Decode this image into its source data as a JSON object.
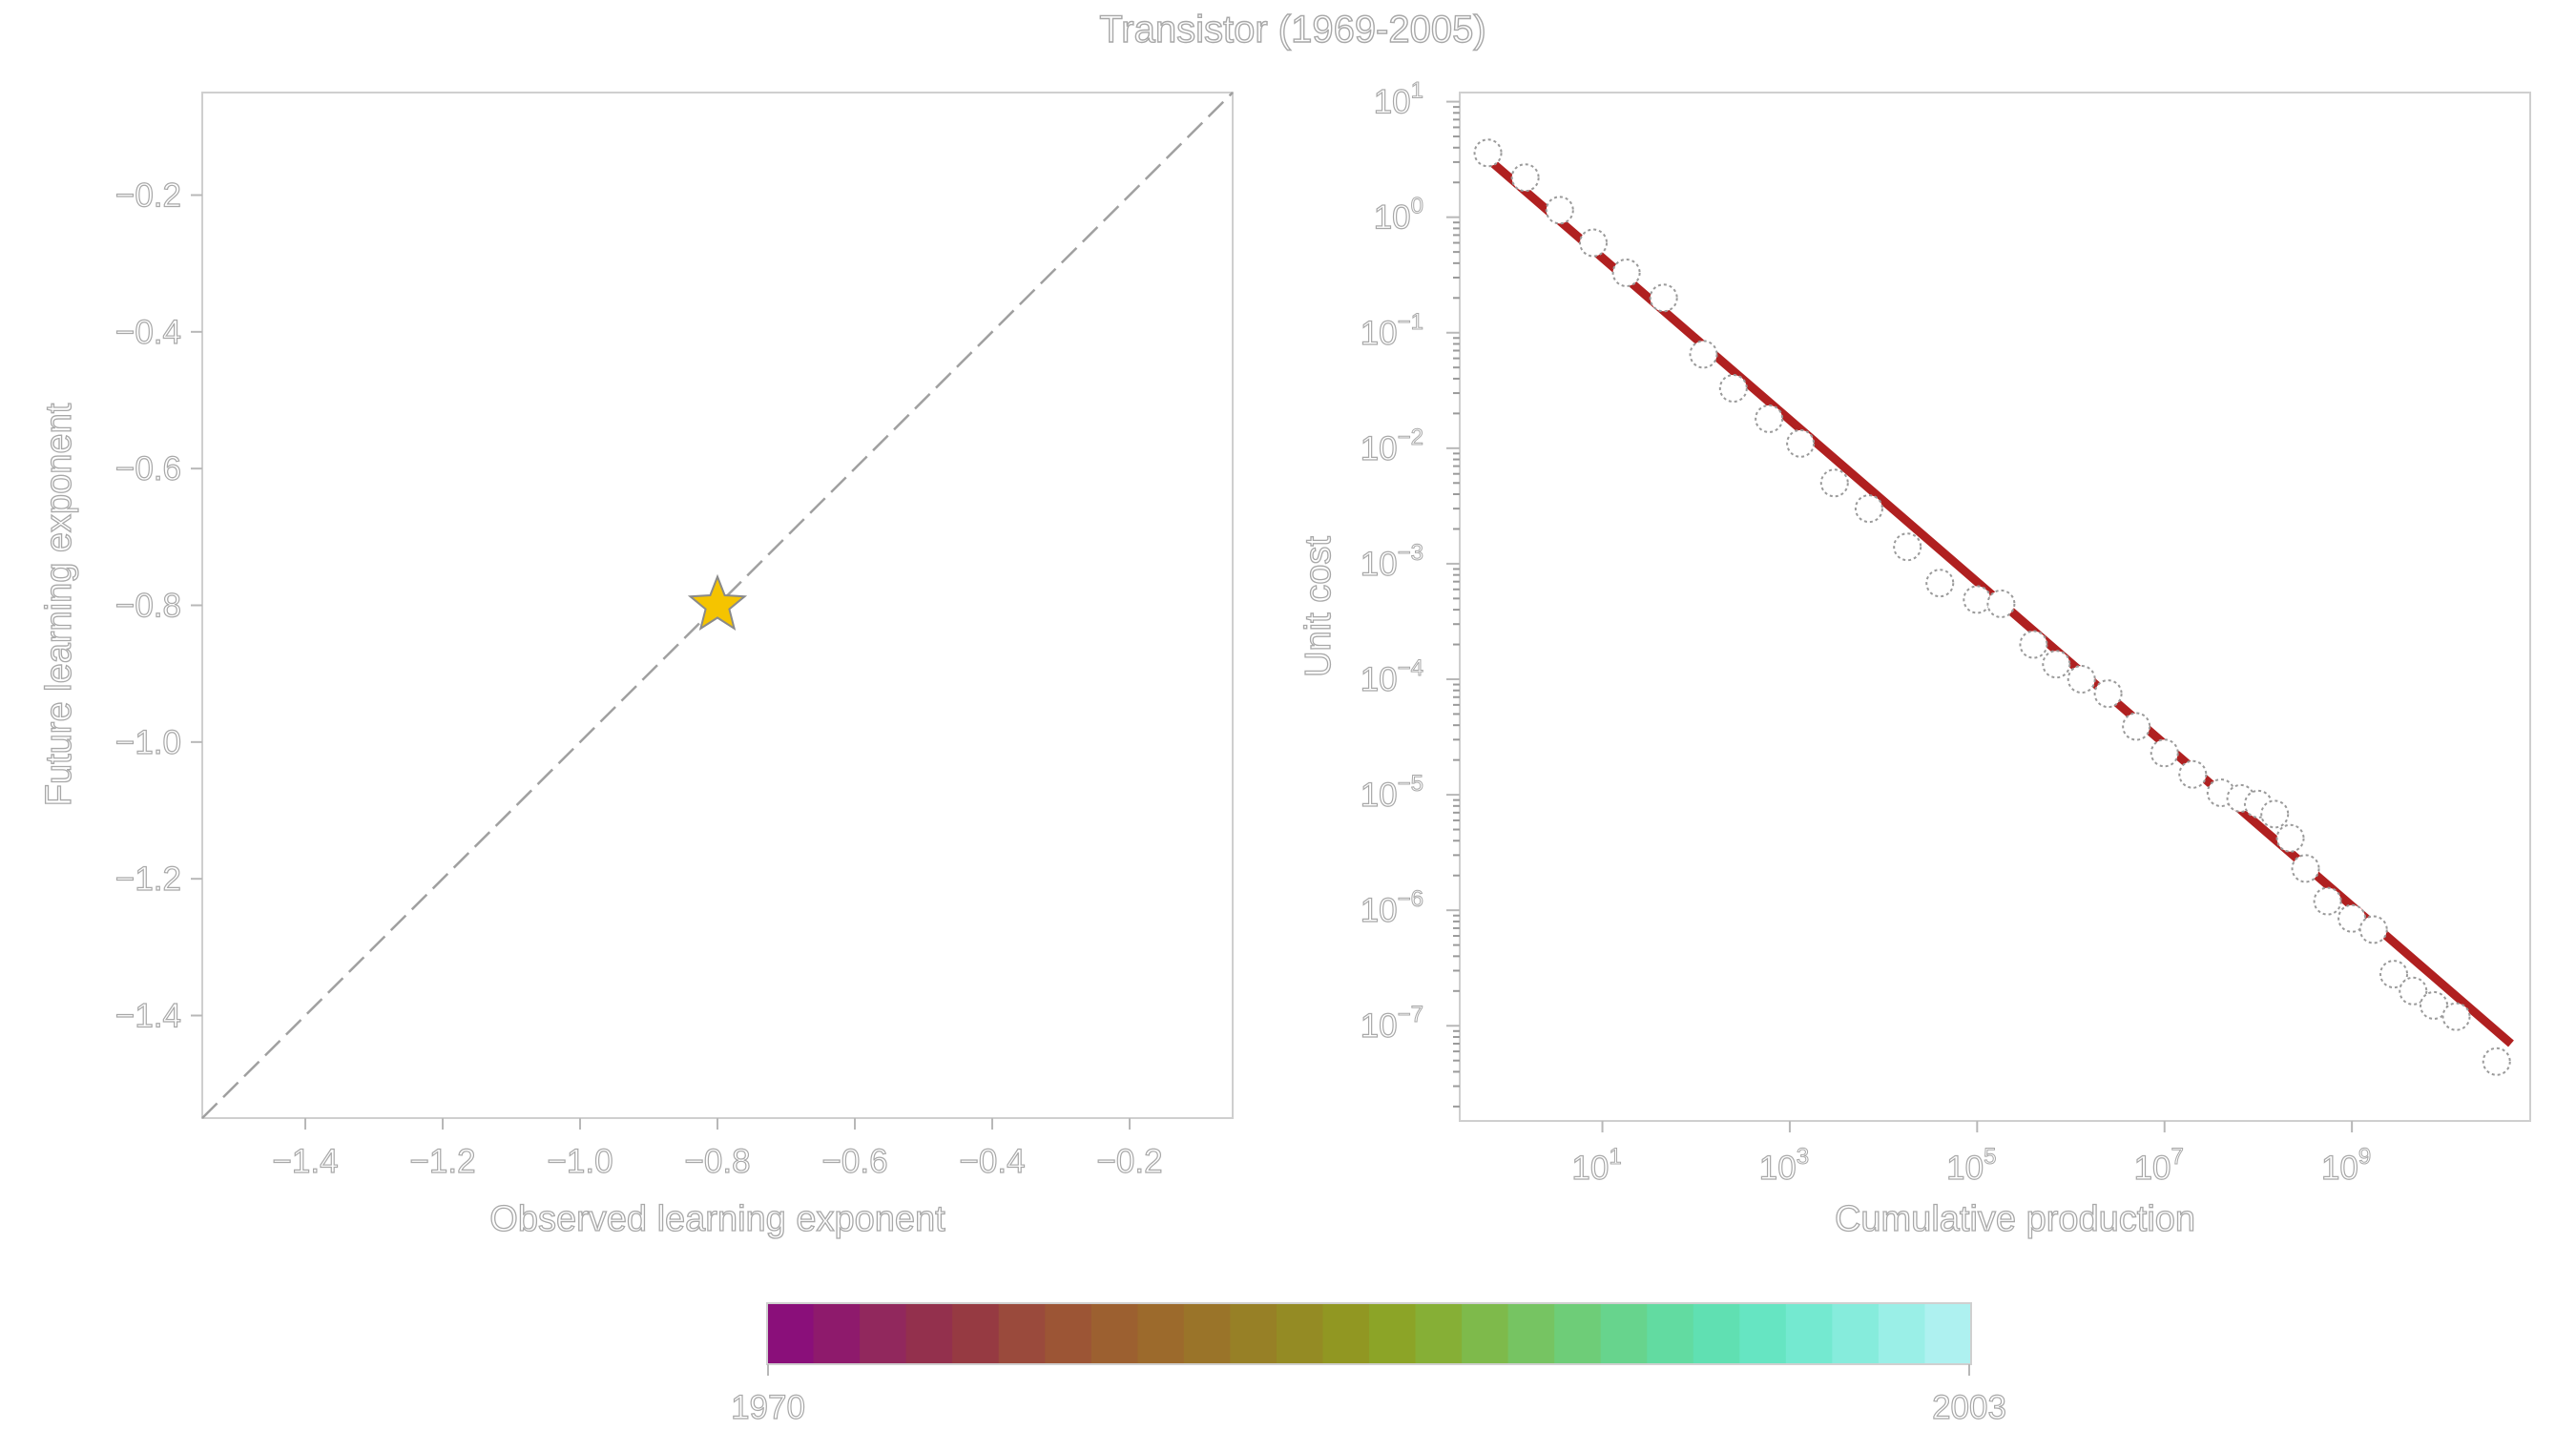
{
  "title": "Transistor (1969-2005)",
  "chart_data": [
    {
      "type": "scatter",
      "xlabel": "Observed learning exponent",
      "ylabel": "Future learning exponent",
      "xlim": [
        -1.55,
        -0.05
      ],
      "ylim": [
        -1.55,
        -0.05
      ],
      "xticks": [
        -1.4,
        -1.2,
        -1.0,
        -0.8,
        -0.6,
        -0.4,
        -0.2
      ],
      "yticks": [
        -0.2,
        -0.4,
        -0.6,
        -0.8,
        -1.0,
        -1.2,
        -1.4
      ],
      "xtick_labels": [
        "−1.4",
        "−1.2",
        "−1.0",
        "−0.8",
        "−0.6",
        "−0.4",
        "−0.2"
      ],
      "ytick_labels": [
        "−0.2",
        "−0.4",
        "−0.6",
        "−0.8",
        "−1.0",
        "−1.2",
        "−1.4"
      ],
      "reference_line": "y = x (dashed)",
      "points": [
        {
          "x": -0.8,
          "y": -0.8,
          "marker": "star",
          "color": "#f5c400"
        }
      ],
      "grid": false
    },
    {
      "type": "scatter",
      "xscale": "log",
      "yscale": "log",
      "xlabel": "Cumulative production",
      "ylabel": "Unit cost",
      "xlim": [
        0.3,
        80000000000
      ],
      "ylim": [
        1.5e-08,
        12
      ],
      "xticks": [
        10,
        1000,
        100000,
        10000000,
        1000000000
      ],
      "xtick_labels": [
        {
          "base": "10",
          "exp": "1"
        },
        {
          "base": "10",
          "exp": "3"
        },
        {
          "base": "10",
          "exp": "5"
        },
        {
          "base": "10",
          "exp": "7"
        },
        {
          "base": "10",
          "exp": "9"
        }
      ],
      "yticks": [
        10,
        1,
        0.1,
        0.01,
        0.001,
        0.0001,
        1e-05,
        1e-06,
        1e-07
      ],
      "ytick_labels": [
        {
          "base": "10",
          "exp": "1"
        },
        {
          "base": "10",
          "exp": "0"
        },
        {
          "base": "10",
          "exp": "−1"
        },
        {
          "base": "10",
          "exp": "−2"
        },
        {
          "base": "10",
          "exp": "−3"
        },
        {
          "base": "10",
          "exp": "−4"
        },
        {
          "base": "10",
          "exp": "−5"
        },
        {
          "base": "10",
          "exp": "−6"
        },
        {
          "base": "10",
          "exp": "−7"
        }
      ],
      "fit_line": {
        "x": [
          0.6,
          50000000000
        ],
        "y": [
          3.2,
          7e-08
        ],
        "color": "#b02020"
      },
      "points": [
        {
          "x": 0.6,
          "y": 3.6
        },
        {
          "x": 1.5,
          "y": 2.2
        },
        {
          "x": 3.5,
          "y": 1.15
        },
        {
          "x": 8,
          "y": 0.6
        },
        {
          "x": 18,
          "y": 0.33
        },
        {
          "x": 45,
          "y": 0.2
        },
        {
          "x": 120,
          "y": 0.065
        },
        {
          "x": 250,
          "y": 0.033
        },
        {
          "x": 600,
          "y": 0.018
        },
        {
          "x": 1300,
          "y": 0.011
        },
        {
          "x": 3000,
          "y": 0.005
        },
        {
          "x": 7000,
          "y": 0.003
        },
        {
          "x": 18000,
          "y": 0.0014
        },
        {
          "x": 40000,
          "y": 0.00068
        },
        {
          "x": 100000,
          "y": 0.00049
        },
        {
          "x": 180000,
          "y": 0.00045
        },
        {
          "x": 400000,
          "y": 0.0002
        },
        {
          "x": 700000,
          "y": 0.000135
        },
        {
          "x": 1300000,
          "y": 0.0001
        },
        {
          "x": 2500000,
          "y": 7.5e-05
        },
        {
          "x": 5000000,
          "y": 3.9e-05
        },
        {
          "x": 10000000,
          "y": 2.3e-05
        },
        {
          "x": 20000000,
          "y": 1.5e-05
        },
        {
          "x": 40000000,
          "y": 1.04e-05
        },
        {
          "x": 65000000,
          "y": 9.3e-06
        },
        {
          "x": 100000000,
          "y": 8.3e-06
        },
        {
          "x": 150000000,
          "y": 6.8e-06
        },
        {
          "x": 220000000,
          "y": 4.2e-06
        },
        {
          "x": 320000000,
          "y": 2.3e-06
        },
        {
          "x": 550000000,
          "y": 1.2e-06
        },
        {
          "x": 1000000000,
          "y": 8.5e-07
        },
        {
          "x": 1700000000,
          "y": 6.8e-07
        },
        {
          "x": 2800000000,
          "y": 2.8e-07
        },
        {
          "x": 4500000000,
          "y": 2e-07
        },
        {
          "x": 7500000000,
          "y": 1.5e-07
        },
        {
          "x": 13000000000,
          "y": 1.2e-07
        },
        {
          "x": 35000000000,
          "y": 4.9e-08
        }
      ],
      "grid": false
    }
  ],
  "colorbar": {
    "min_label": "1970",
    "max_label": "2003",
    "min": 1970,
    "max": 2003,
    "colors": [
      "#8a0f7a",
      "#8e1a6c",
      "#91285d",
      "#93304d",
      "#963a42",
      "#9a4a3c",
      "#9c5535",
      "#9c6030",
      "#9c6a2c",
      "#9a7429",
      "#978026",
      "#948b24",
      "#919722",
      "#8ca427",
      "#86af36",
      "#7eba4b",
      "#76c462",
      "#6ecd78",
      "#67d48d",
      "#62dba1",
      "#60e0b2",
      "#66e5c2",
      "#74e9d0",
      "#86ecdc",
      "#9aefe7",
      "#aef1f0"
    ]
  }
}
